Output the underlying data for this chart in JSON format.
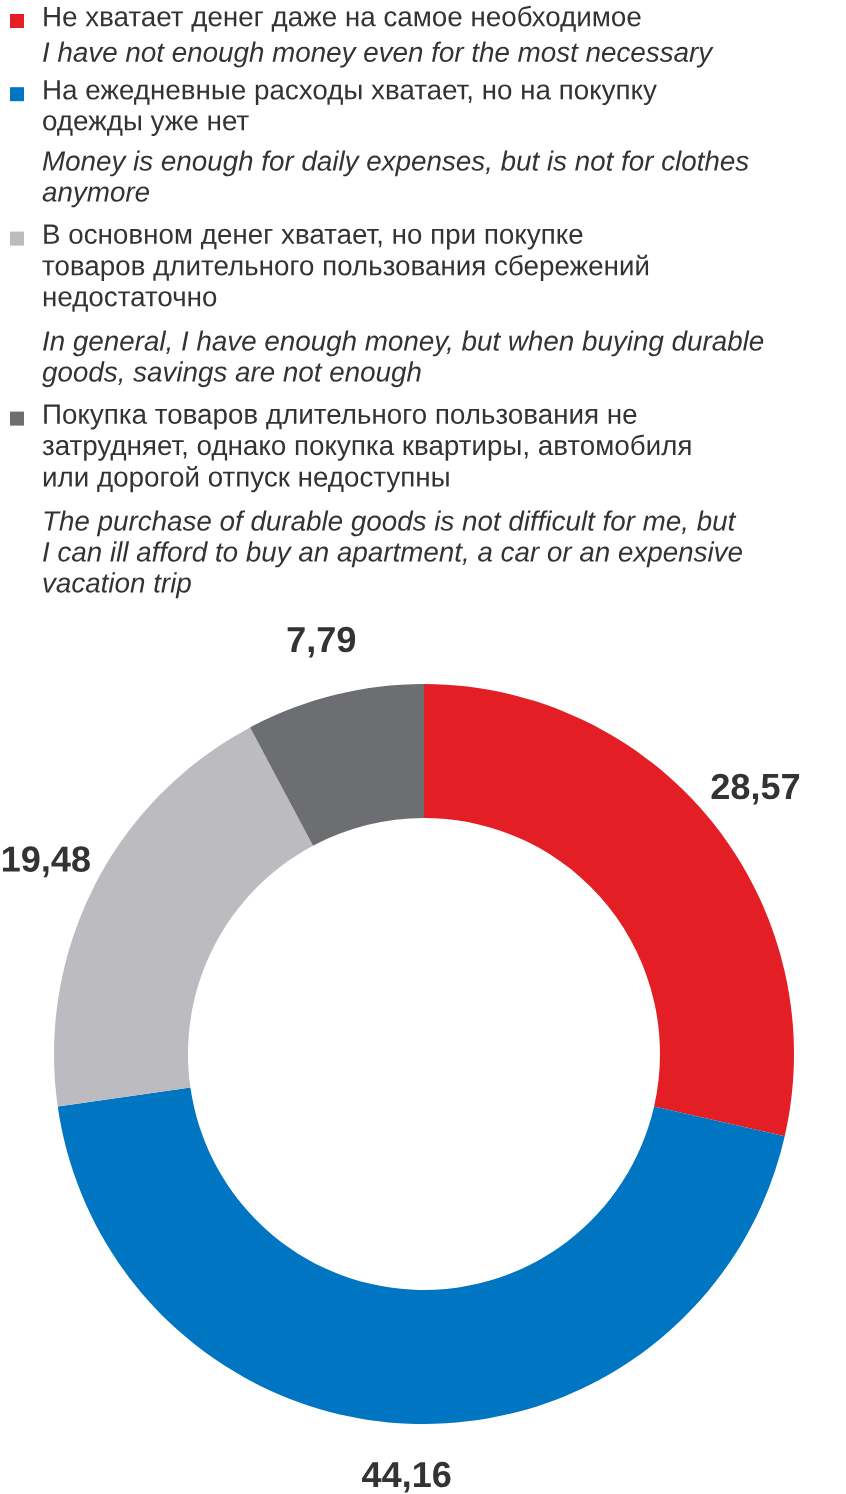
{
  "chart_data": {
    "type": "donut",
    "categories": [
      "Не хватает денег даже на самое необходимое",
      "На ежедневные расходы хватает, но на покупку\nодежды уже нет",
      "В основном денег хватает, но при покупке\nтоваров длительного пользования сбережений\nнедостаточно",
      "Покупка товаров длительного пользования не\nзатрудняет, однако покупка квартиры, автомобиля\nили дорогой отпуск недоступны"
    ],
    "values": [
      28.57,
      44.16,
      19.48,
      7.79
    ],
    "value_labels": [
      "28,57",
      "44,16",
      "19,48",
      "7,79"
    ],
    "colors": [
      "#e31e24",
      "#0075c2",
      "#bcbcc0",
      "#6d6e71"
    ],
    "annotations": [
      "I have not enough money even for the most necessary",
      "Money is enough for daily expenses, but is not for clothes\nanymore",
      "In general, I have enough money, but when buying durable\ngoods, savings are not enough",
      "The purchase of durable goods is not difficult for me, but\nI can ill afford to buy an apartment, a car or an expensive\nvacation trip"
    ],
    "legend": "top"
  }
}
